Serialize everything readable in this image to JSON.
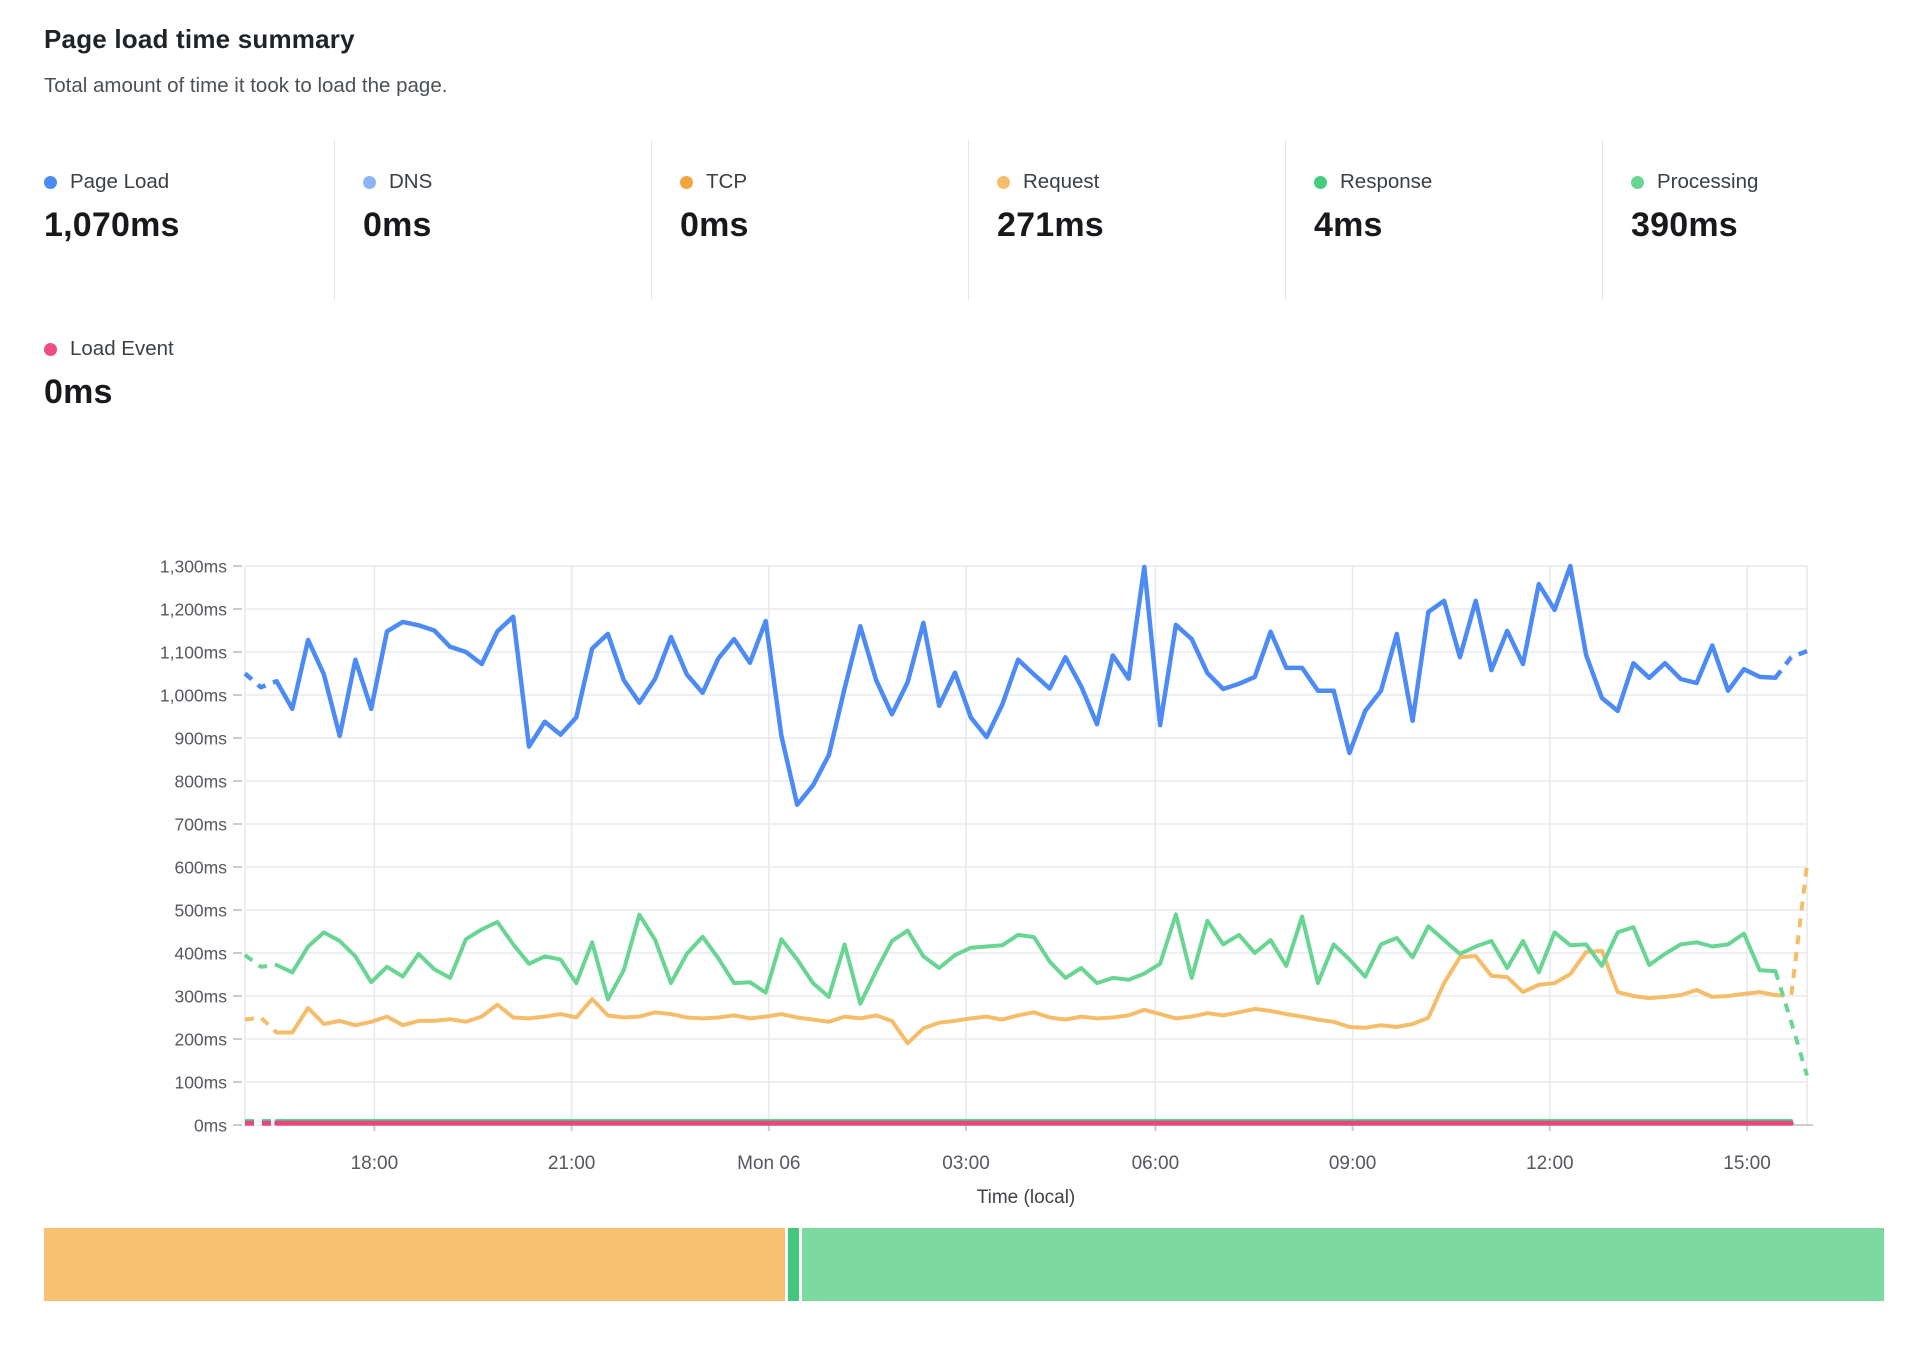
{
  "page": {
    "title": "Page load time summary",
    "subtitle": "Total amount of time it took to load the page."
  },
  "stats": [
    {
      "label": "Page Load",
      "value": "1,070ms",
      "color": "#4c8bf5"
    },
    {
      "label": "DNS",
      "value": "0ms",
      "color": "#8ab4f8"
    },
    {
      "label": "TCP",
      "value": "0ms",
      "color": "#f2a33c"
    },
    {
      "label": "Request",
      "value": "271ms",
      "color": "#f5bd6a"
    },
    {
      "label": "Response",
      "value": "4ms",
      "color": "#45cc7f"
    },
    {
      "label": "Processing",
      "value": "390ms",
      "color": "#68d592"
    }
  ],
  "load_event": {
    "label": "Load Event",
    "value": "0ms",
    "color": "#ee4d86"
  },
  "chart_data": {
    "type": "line",
    "title": "Page load time summary",
    "xlabel": "Time (local)",
    "ylabel": "",
    "ylim": [
      0,
      1300
    ],
    "grid": true,
    "points_max": 100,
    "y_ticks": [
      {
        "value": 0,
        "label": "0ms"
      },
      {
        "value": 100,
        "label": "100ms"
      },
      {
        "value": 200,
        "label": "200ms"
      },
      {
        "value": 300,
        "label": "300ms"
      },
      {
        "value": 400,
        "label": "400ms"
      },
      {
        "value": 500,
        "label": "500ms"
      },
      {
        "value": 600,
        "label": "600ms"
      },
      {
        "value": 700,
        "label": "700ms"
      },
      {
        "value": 800,
        "label": "800ms"
      },
      {
        "value": 900,
        "label": "900ms"
      },
      {
        "value": 1000,
        "label": "1,000ms"
      },
      {
        "value": 1100,
        "label": "1,100ms"
      },
      {
        "value": 1200,
        "label": "1,200ms"
      },
      {
        "value": 1300,
        "label": "1,300ms"
      }
    ],
    "x_ticks": [
      {
        "label": "18:00",
        "pos": 8.2
      },
      {
        "label": "21:00",
        "pos": 20.7
      },
      {
        "label": "Mon 06",
        "pos": 33.2
      },
      {
        "label": "03:00",
        "pos": 45.7
      },
      {
        "label": "06:00",
        "pos": 57.7
      },
      {
        "label": "09:00",
        "pos": 70.2
      },
      {
        "label": "12:00",
        "pos": 82.7
      },
      {
        "label": "15:00",
        "pos": 95.2
      }
    ],
    "series": [
      {
        "name": "Response",
        "color": "#45cc7f",
        "width": 4,
        "dash_start": 2,
        "dash_end": 0,
        "flat_value": 9,
        "flat_count": 99
      },
      {
        "name": "Load Event",
        "color": "#e8467f",
        "width": 5,
        "dash_start": 2,
        "dash_end": 0,
        "flat_value": 4,
        "flat_count": 99
      },
      {
        "name": "Request",
        "color": "#f5bd6a",
        "width": 4,
        "dash_start": 2,
        "dash_end": 2,
        "values": [
          245,
          250,
          215,
          215,
          272,
          235,
          242,
          232,
          240,
          252,
          232,
          242,
          242,
          246,
          240,
          252,
          280,
          250,
          248,
          252,
          258,
          250,
          293,
          255,
          250,
          252,
          262,
          258,
          250,
          248,
          250,
          255,
          248,
          252,
          258,
          250,
          245,
          240,
          252,
          248,
          255,
          242,
          190,
          225,
          238,
          242,
          248,
          252,
          245,
          255,
          262,
          250,
          245,
          252,
          248,
          250,
          255,
          268,
          258,
          248,
          252,
          260,
          255,
          262,
          270,
          265,
          258,
          252,
          245,
          240,
          228,
          226,
          232,
          228,
          235,
          249,
          330,
          390,
          393,
          347,
          344,
          309,
          326,
          330,
          351,
          402,
          405,
          309,
          300,
          295,
          298,
          302,
          314,
          298,
          300,
          305,
          309,
          302,
          300,
          605
        ]
      },
      {
        "name": "Processing",
        "color": "#68d592",
        "width": 4,
        "dash_start": 2,
        "dash_end": 2,
        "values": [
          395,
          368,
          372,
          355,
          415,
          448,
          428,
          392,
          332,
          368,
          345,
          398,
          362,
          342,
          432,
          455,
          472,
          420,
          375,
          392,
          385,
          330,
          425,
          292,
          360,
          489,
          430,
          330,
          398,
          438,
          388,
          330,
          332,
          308,
          432,
          385,
          330,
          298,
          420,
          282,
          358,
          428,
          452,
          392,
          365,
          395,
          412,
          415,
          418,
          442,
          437,
          380,
          342,
          365,
          330,
          342,
          338,
          352,
          375,
          490,
          342,
          475,
          420,
          442,
          400,
          430,
          370,
          485,
          330,
          420,
          385,
          345,
          420,
          435,
          390,
          462,
          430,
          398,
          415,
          428,
          365,
          428,
          355,
          448,
          418,
          420,
          370,
          448,
          460,
          372,
          398,
          420,
          425,
          415,
          420,
          445,
          360,
          358,
          240,
          115
        ]
      },
      {
        "name": "Page Load",
        "color": "#4c8bf5",
        "width": 4.5,
        "dash_start": 2,
        "dash_end": 2,
        "values": [
          1050,
          1018,
          1032,
          968,
          1128,
          1048,
          905,
          1082,
          968,
          1148,
          1170,
          1162,
          1150,
          1112,
          1100,
          1072,
          1148,
          1182,
          880,
          938,
          908,
          948,
          1108,
          1142,
          1035,
          982,
          1038,
          1135,
          1048,
          1005,
          1085,
          1130,
          1075,
          1172,
          905,
          745,
          790,
          860,
          1015,
          1160,
          1035,
          955,
          1030,
          1168,
          975,
          1052,
          948,
          902,
          978,
          1082,
          1048,
          1015,
          1088,
          1020,
          932,
          1092,
          1038,
          1298,
          930,
          1163,
          1130,
          1051,
          1014,
          1026,
          1042,
          1147,
          1063,
          1063,
          1010,
          1010,
          865,
          963,
          1010,
          1142,
          940,
          1193,
          1219,
          1088,
          1219,
          1058,
          1149,
          1072,
          1258,
          1198,
          1300,
          1093,
          993,
          963,
          1074,
          1040,
          1074,
          1037,
          1028,
          1115,
          1010,
          1060,
          1042,
          1040,
          1088,
          1102
        ]
      }
    ]
  },
  "bar": {
    "segments": [
      {
        "name": "Request",
        "color": "#f6c172",
        "fraction": 0.404
      },
      {
        "name": "Response",
        "color": "#44c67c",
        "fraction": 0.006
      },
      {
        "name": "Processing",
        "color": "#7cdaa1",
        "fraction": 0.59
      }
    ]
  },
  "colors": {
    "grid": "#e9eaeb",
    "axis_tick": "#c9cbcc",
    "axis_text": "#54585e",
    "divider": "#e2e4e7"
  }
}
